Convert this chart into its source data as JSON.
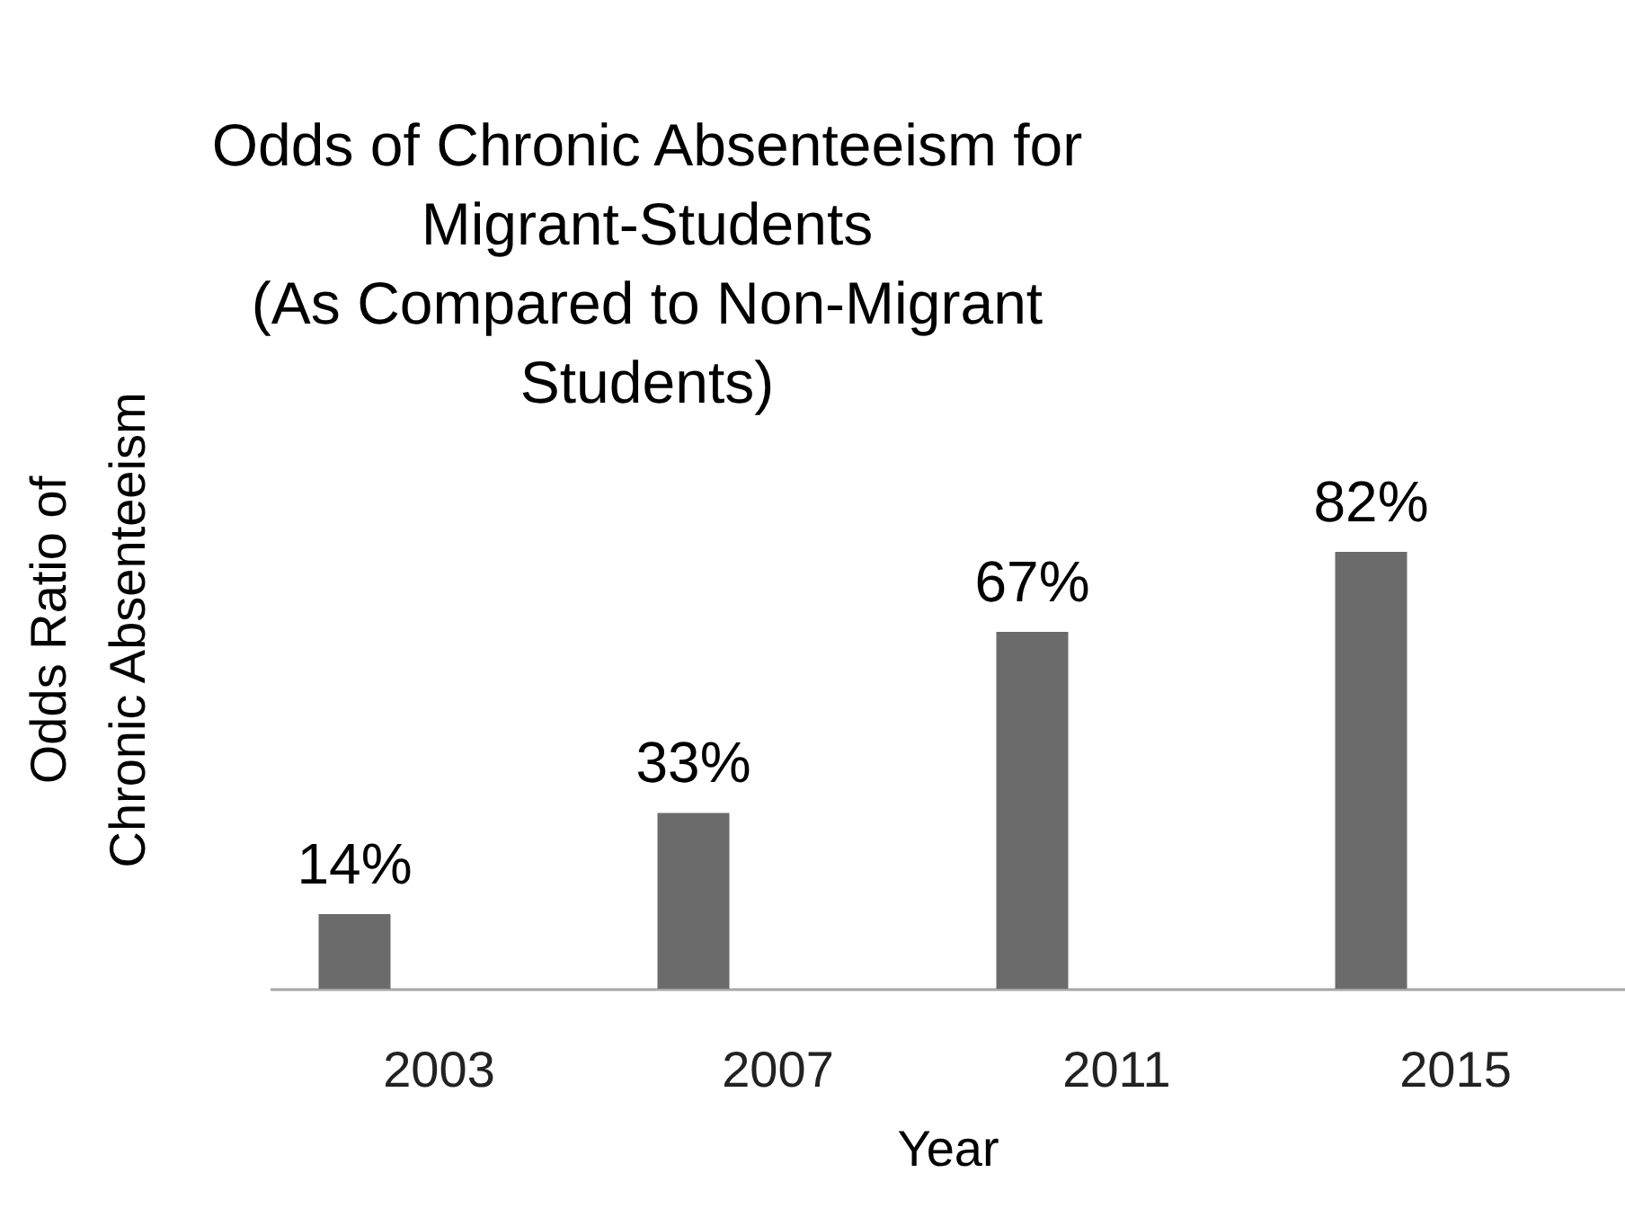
{
  "chart_data": {
    "type": "bar",
    "title": "Odds of Chronic Absenteeism for\nMigrant-Students\n(As Compared to Non-Migrant\nStudents)",
    "xlabel": "Year",
    "ylabel": "Odds Ratio of\nChronic Absenteeism",
    "categories": [
      "2003",
      "2007",
      "2011",
      "2015"
    ],
    "values": [
      14,
      33,
      67,
      82
    ],
    "color": "#6b6b6b",
    "value_labels": [
      "14%",
      "33%",
      "67%",
      "82%"
    ]
  }
}
